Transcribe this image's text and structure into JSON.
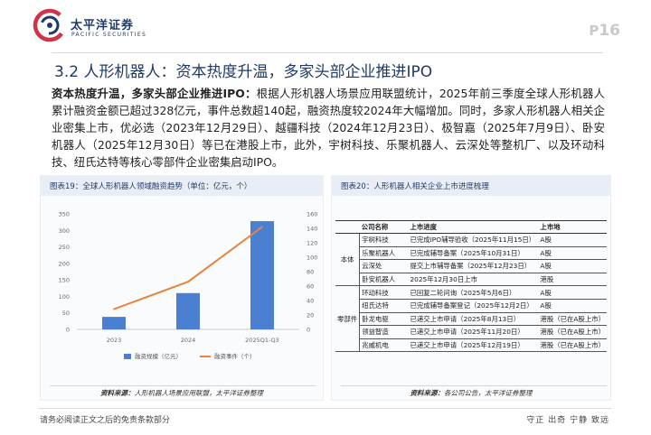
{
  "brand": {
    "name_cn": "太平洋证券",
    "name_en": "PACIFIC SECURITIES"
  },
  "page": {
    "prefix": "P",
    "number": "16"
  },
  "section_title": "3.2 人形机器人：资本热度升温，多家头部企业推进IPO",
  "paragraph": {
    "lead": "资本热度升温，多家头部企业推进IPO：",
    "body": "根据人形机器人场景应用联盟统计，2025年前三季度全球人形机器人累计融资金额已超过328亿元，事件总数超140起，融资热度较2024年大幅增加。同时，多家人形机器人相关企业密集上市，优必选（2023年12月29日）、越疆科技（2024年12月23日）、极智嘉（2025年7月9日）、卧安机器人（2025年12月30日）等已在港股上市，此外，宇树科技、乐聚机器人、云深处等整机厂、以及环动科技、纽氏达特等核心零部件企业密集启动IPO。"
  },
  "figure19": {
    "title": "图表19：全球人形机器人领域融资趋势（单位：亿元，个）",
    "source_label": "资料来源：",
    "source_text": "人形机器人场景应用联盟，太平洋证券整理"
  },
  "figure20": {
    "title": "图表20：人形机器人相关企业上市进度梳理",
    "source_label": "资料来源：",
    "source_text": "各公司公告，太平洋证券整理",
    "headers": [
      "公司名称",
      "上市进度",
      "上市地"
    ],
    "groups": [
      {
        "category": "本体",
        "rows": [
          [
            "宇树科技",
            "已完成IPO辅导验收（2025年11月15日）",
            "A股"
          ],
          [
            "乐聚机器人",
            "已完成辅导备案（2025年10月31日）",
            "A股"
          ],
          [
            "云深处",
            "提交上市辅导备案（2025年12月23日）",
            "A股"
          ],
          [
            "卧安机器人",
            "2025年12月30日上市",
            "港股"
          ]
        ]
      },
      {
        "category": "零部件",
        "rows": [
          [
            "环动科技",
            "已回复二轮问询（2025年5月6日）",
            "A股"
          ],
          [
            "纽氏达特",
            "已完成辅导备案登记（2025年12月2日）",
            "A股"
          ],
          [
            "卧龙电驱",
            "已递交上市申请（2025年8月13日）",
            "港股（已在A股上市）"
          ],
          [
            "领益智造",
            "已递交上市申请（2025年11月20日）",
            "港股（已在A股上市）"
          ],
          [
            "兆威机电",
            "已递交上市申请（2025年12月19日）",
            "港股（已在A股上市）"
          ]
        ]
      }
    ]
  },
  "chart_data": {
    "type": "bar+line",
    "categories": [
      "2023",
      "2024",
      "2025Q1-Q3"
    ],
    "series": [
      {
        "name": "融资规模（亿元）",
        "type": "bar",
        "axis": "left",
        "values": [
          38,
          110,
          328
        ],
        "color": "#4a7fd1"
      },
      {
        "name": "融资事件（个）",
        "type": "line",
        "axis": "right",
        "values": [
          28,
          66,
          142
        ],
        "color": "#e8843c"
      }
    ],
    "ylim_left": [
      0,
      350
    ],
    "yticks_left": [
      "0",
      "50",
      "100",
      "150",
      "200",
      "250",
      "300",
      "350"
    ],
    "ylim_right": [
      0,
      160
    ],
    "yticks_right": [
      "0",
      "20",
      "40",
      "60",
      "80",
      "100",
      "120",
      "140",
      "160"
    ],
    "grid": false,
    "legend_position": "bottom-center"
  },
  "footer": {
    "disclaimer": "请务必阅读正文之后的免责条款部分",
    "motto": "守正 出奇 宁静 致远"
  }
}
